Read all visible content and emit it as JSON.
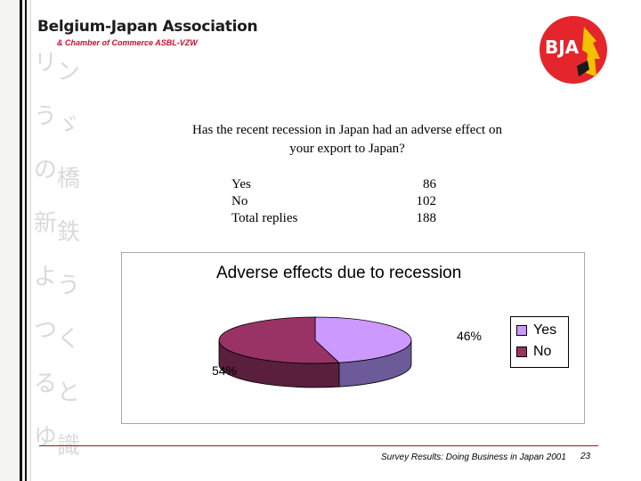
{
  "header": {
    "org_name": "Belgium-Japan Association",
    "org_subtitle": "& Chamber of Commerce ASBL-VZW",
    "logo_text": "BJA",
    "logo_color": "#e4262c"
  },
  "question": {
    "line1": "Has the recent recession in Japan had an adverse effect on",
    "line2": "your export to Japan?"
  },
  "replies": [
    {
      "label": "Yes",
      "value": "86"
    },
    {
      "label": "No",
      "value": "102"
    },
    {
      "label": "Total replies",
      "value": "188"
    }
  ],
  "chart_data": {
    "type": "pie",
    "title": "Adverse effects due to recession",
    "categories": [
      "Yes",
      "No"
    ],
    "values": [
      46,
      54
    ],
    "labels": [
      "46%",
      "54%"
    ],
    "colors": [
      "#cc99ff",
      "#993366"
    ],
    "side_colors": [
      "#6d5a99",
      "#5a1f3c"
    ],
    "legend": [
      "Yes",
      "No"
    ],
    "legend_position": "right",
    "style": "3d"
  },
  "footer": {
    "source": "Survey Results: Doing Business in Japan 2001",
    "page_number": "23"
  }
}
